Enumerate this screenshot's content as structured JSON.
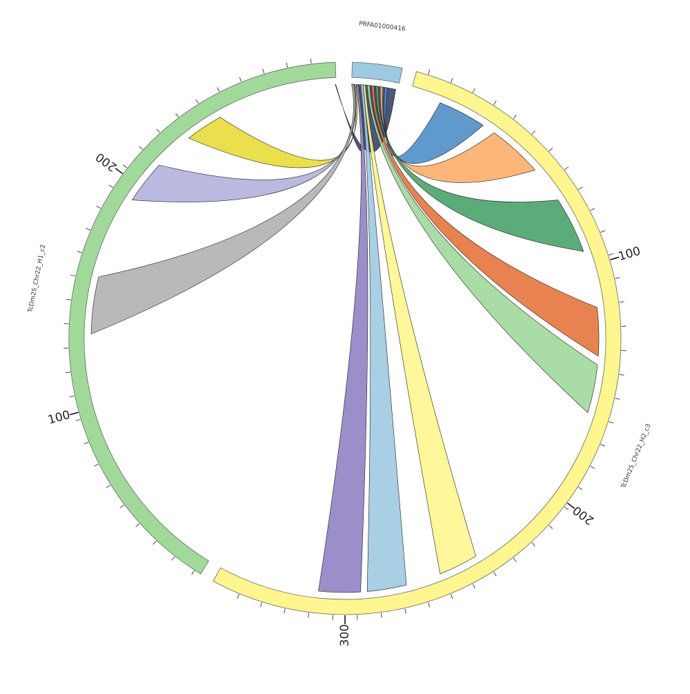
{
  "chart_data": {
    "type": "chord",
    "segments": [
      {
        "name": "PRFA01000416",
        "color": "#9ecae1"
      },
      {
        "name": "TcDm25_Chr22_H2_c3",
        "color": "#fff68f"
      },
      {
        "name": "TcDm25_Chr22_H1_c2",
        "color": "#a1d99b"
      }
    ],
    "tick_labels": {
      "TcDm25_Chr22_H2_c3": [
        "100",
        "200",
        "300"
      ],
      "TcDm25_Chr22_H1_c2": [
        "100",
        "200"
      ]
    },
    "links": [
      {
        "color": "#3b4268"
      },
      {
        "color": "#4f8fc8"
      },
      {
        "color": "#fdae6b"
      },
      {
        "color": "#4aa36b"
      },
      {
        "color": "#e6753e"
      },
      {
        "color": "#a1d99b"
      },
      {
        "color": "#fff68f"
      },
      {
        "color": "#9ecae1"
      },
      {
        "color": "#9182c2"
      },
      {
        "color": "#e8dc3a"
      },
      {
        "color": "#b3b1db"
      },
      {
        "color": "#b1b1b1"
      }
    ]
  }
}
